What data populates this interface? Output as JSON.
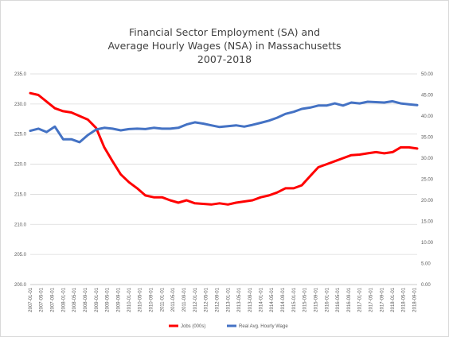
{
  "chart_data": {
    "type": "line",
    "title": [
      "Financial Sector Employment (SA) and",
      "Average Hourly Wages (NSA) in Massachusetts",
      "2007-2018"
    ],
    "colors": {
      "jobs": "#ff0000",
      "wage": "#4472c4",
      "grid": "#d9d9d9",
      "axis_text": "#595959",
      "title": "#404040"
    },
    "grid": true,
    "legend_position": "bottom",
    "left_axis": {
      "ticks": [
        "200.0",
        "205.0",
        "210.0",
        "215.0",
        "220.0",
        "225.0",
        "230.0",
        "235.0"
      ],
      "ylim": [
        200,
        235
      ]
    },
    "right_axis": {
      "ticks": [
        "0.00",
        "5.00",
        "10.00",
        "15.00",
        "20.00",
        "25.00",
        "30.00",
        "35.00",
        "40.00",
        "45.00",
        "50.00"
      ],
      "ylim": [
        0,
        50
      ]
    },
    "x_ticks": [
      "2007-01-01",
      "2007-05-01",
      "2007-09-01",
      "2008-01-01",
      "2008-05-01",
      "2008-09-01",
      "2009-01-01",
      "2009-05-01",
      "2009-09-01",
      "2010-01-01",
      "2010-05-01",
      "2010-09-01",
      "2011-01-01",
      "2011-05-01",
      "2011-09-01",
      "2012-01-01",
      "2012-05-01",
      "2012-09-01",
      "2013-01-01",
      "2013-05-01",
      "2013-09-01",
      "2014-01-01",
      "2014-05-01",
      "2014-09-01",
      "2015-01-01",
      "2015-05-01",
      "2015-09-01",
      "2016-01-01",
      "2016-05-01",
      "2016-09-01",
      "2017-01-01",
      "2017-05-01",
      "2017-09-01",
      "2018-01-01",
      "2018-05-01",
      "2018-09-01"
    ],
    "series": [
      {
        "name": "Jobs (000s)",
        "axis": "left",
        "x": [
          "2007-01",
          "2007-04",
          "2007-07",
          "2007-10",
          "2008-01",
          "2008-04",
          "2008-07",
          "2008-10",
          "2009-01",
          "2009-04",
          "2009-07",
          "2009-10",
          "2010-01",
          "2010-04",
          "2010-07",
          "2010-10",
          "2011-01",
          "2011-04",
          "2011-07",
          "2011-10",
          "2012-01",
          "2012-04",
          "2012-07",
          "2012-10",
          "2013-01",
          "2013-04",
          "2013-07",
          "2013-10",
          "2014-01",
          "2014-04",
          "2014-07",
          "2014-10",
          "2015-01",
          "2015-04",
          "2015-07",
          "2015-10",
          "2016-01",
          "2016-04",
          "2016-07",
          "2016-10",
          "2017-01",
          "2017-04",
          "2017-07",
          "2017-10",
          "2018-01",
          "2018-04",
          "2018-07",
          "2018-10"
        ],
        "values": [
          231.8,
          231.5,
          230.4,
          229.3,
          228.8,
          228.6,
          228.0,
          227.4,
          226.0,
          222.8,
          220.5,
          218.3,
          217.0,
          216.0,
          214.8,
          214.5,
          214.5,
          214.0,
          213.6,
          214.0,
          213.5,
          213.4,
          213.3,
          213.5,
          213.3,
          213.6,
          213.8,
          214.0,
          214.5,
          214.8,
          215.3,
          216.0,
          216.0,
          216.5,
          218.0,
          219.5,
          220.0,
          220.5,
          221.0,
          221.5,
          221.6,
          221.8,
          222.0,
          221.8,
          222.0,
          222.8,
          222.8,
          222.6
        ]
      },
      {
        "name": "Real Avg. Hourly Wage",
        "axis": "right",
        "x": [
          "2007-01",
          "2007-04",
          "2007-07",
          "2007-10",
          "2008-01",
          "2008-04",
          "2008-07",
          "2008-10",
          "2009-01",
          "2009-04",
          "2009-07",
          "2009-10",
          "2010-01",
          "2010-04",
          "2010-07",
          "2010-10",
          "2011-01",
          "2011-04",
          "2011-07",
          "2011-10",
          "2012-01",
          "2012-04",
          "2012-07",
          "2012-10",
          "2013-01",
          "2013-04",
          "2013-07",
          "2013-10",
          "2014-01",
          "2014-04",
          "2014-07",
          "2014-10",
          "2015-01",
          "2015-04",
          "2015-07",
          "2015-10",
          "2016-01",
          "2016-04",
          "2016-07",
          "2016-10",
          "2017-01",
          "2017-04",
          "2017-07",
          "2017-10",
          "2018-01",
          "2018-04",
          "2018-07",
          "2018-10"
        ],
        "values": [
          36.5,
          37.0,
          36.2,
          37.5,
          34.5,
          34.5,
          33.8,
          35.5,
          36.8,
          37.2,
          37.0,
          36.6,
          36.9,
          37.0,
          36.9,
          37.2,
          37.0,
          37.0,
          37.2,
          38.0,
          38.5,
          38.2,
          37.8,
          37.4,
          37.6,
          37.8,
          37.5,
          37.9,
          38.4,
          38.9,
          39.6,
          40.5,
          41.0,
          41.7,
          42.0,
          42.5,
          42.5,
          43.0,
          42.5,
          43.2,
          43.0,
          43.4,
          43.3,
          43.2,
          43.5,
          43.0,
          42.8,
          42.6
        ]
      }
    ]
  }
}
